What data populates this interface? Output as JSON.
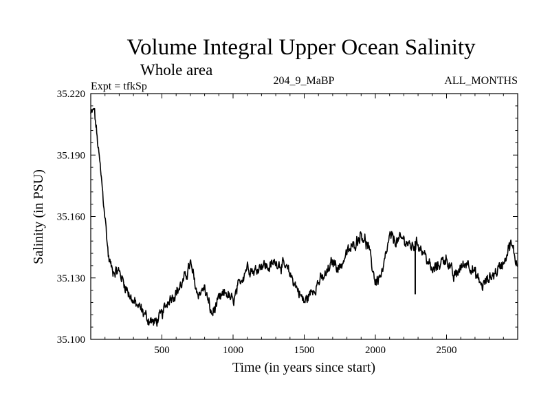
{
  "chart_data": {
    "type": "line",
    "title": "Volume Integral Upper Ocean Salinity",
    "subtitle": "Whole area",
    "experiment": "Expt = tfkSp",
    "run_id": "204_9_MaBP",
    "period": "ALL_MONTHS",
    "xlabel": "Time (in years since start)",
    "ylabel": "Salinity (in PSU)",
    "xlim": [
      0,
      3000
    ],
    "ylim": [
      35.1,
      35.22
    ],
    "xticks": [
      500,
      1000,
      1500,
      2000,
      2500
    ],
    "xtick_labels": [
      "500",
      "1000",
      "1500",
      "2000",
      "2500"
    ],
    "yticks": [
      35.1,
      35.13,
      35.16,
      35.19,
      35.22
    ],
    "ytick_labels": [
      "35.100",
      "35.130",
      "35.160",
      "35.190",
      "35.220"
    ],
    "grid": false,
    "series": [
      {
        "name": "Salinity",
        "color": "#000000",
        "x": [
          0,
          25,
          50,
          75,
          100,
          125,
          150,
          200,
          250,
          300,
          350,
          400,
          450,
          500,
          550,
          600,
          650,
          700,
          750,
          800,
          850,
          900,
          950,
          1000,
          1050,
          1100,
          1150,
          1200,
          1250,
          1300,
          1350,
          1400,
          1450,
          1500,
          1550,
          1600,
          1650,
          1700,
          1750,
          1800,
          1850,
          1900,
          1950,
          2000,
          2050,
          2100,
          2150,
          2200,
          2250,
          2300,
          2350,
          2400,
          2450,
          2500,
          2550,
          2600,
          2650,
          2700,
          2750,
          2800,
          2850,
          2900,
          2950,
          3000
        ],
        "y": [
          35.21,
          35.212,
          35.195,
          35.178,
          35.16,
          35.14,
          35.134,
          35.133,
          35.125,
          35.118,
          35.115,
          35.11,
          35.108,
          35.112,
          35.12,
          35.123,
          35.128,
          35.137,
          35.122,
          35.125,
          35.112,
          35.119,
          35.123,
          35.118,
          35.128,
          35.136,
          35.133,
          35.137,
          35.135,
          35.138,
          35.136,
          35.132,
          35.125,
          35.118,
          35.123,
          35.128,
          35.131,
          35.138,
          35.135,
          35.142,
          35.146,
          35.152,
          35.145,
          35.128,
          35.132,
          35.15,
          35.148,
          35.149,
          35.145,
          35.147,
          35.141,
          35.133,
          35.137,
          35.14,
          35.13,
          35.135,
          35.138,
          35.132,
          35.126,
          35.13,
          35.133,
          35.138,
          35.147,
          35.136
        ],
        "spikes": [
          {
            "x": 2280,
            "y_from": 35.148,
            "y_to": 35.122
          }
        ]
      }
    ]
  }
}
